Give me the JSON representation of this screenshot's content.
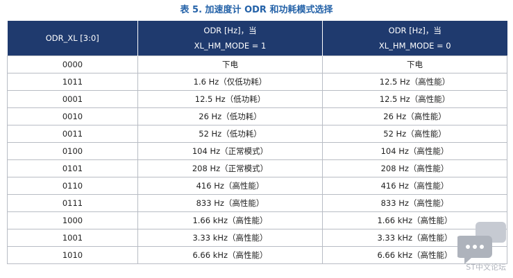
{
  "header": {
    "title": "表 5. 加速度计 ODR 和功耗模式选择"
  },
  "table": {
    "columns": [
      [
        "ODR_XL [3:0]"
      ],
      [
        "ODR [Hz]，当",
        "XL_HM_MODE = 1"
      ],
      [
        "ODR [Hz]，当",
        "XL_HM_MODE = 0"
      ]
    ],
    "rows": [
      [
        "0000",
        "下电",
        "下电"
      ],
      [
        "1011",
        "1.6 Hz（仅低功耗）",
        "12.5 Hz（高性能）"
      ],
      [
        "0001",
        "12.5 Hz（低功耗）",
        "12.5 Hz（高性能）"
      ],
      [
        "0010",
        "26 Hz（低功耗）",
        "26 Hz（高性能）"
      ],
      [
        "0011",
        "52 Hz（低功耗）",
        "52 Hz（高性能）"
      ],
      [
        "0100",
        "104 Hz（正常模式）",
        "104 Hz（高性能）"
      ],
      [
        "0101",
        "208 Hz（正常模式）",
        "208 Hz（高性能）"
      ],
      [
        "0110",
        "416 Hz（高性能）",
        "416 Hz（高性能）"
      ],
      [
        "0111",
        "833 Hz（高性能）",
        "833 Hz（高性能）"
      ],
      [
        "1000",
        "1.66 kHz（高性能）",
        "1.66 kHz（高性能）"
      ],
      [
        "1001",
        "3.33 kHz（高性能）",
        "3.33 kHz（高性能）"
      ],
      [
        "1010",
        "6.66 kHz（高性能）",
        "6.66 kHz（高性能）"
      ]
    ]
  },
  "watermark": "ST中文论坛"
}
